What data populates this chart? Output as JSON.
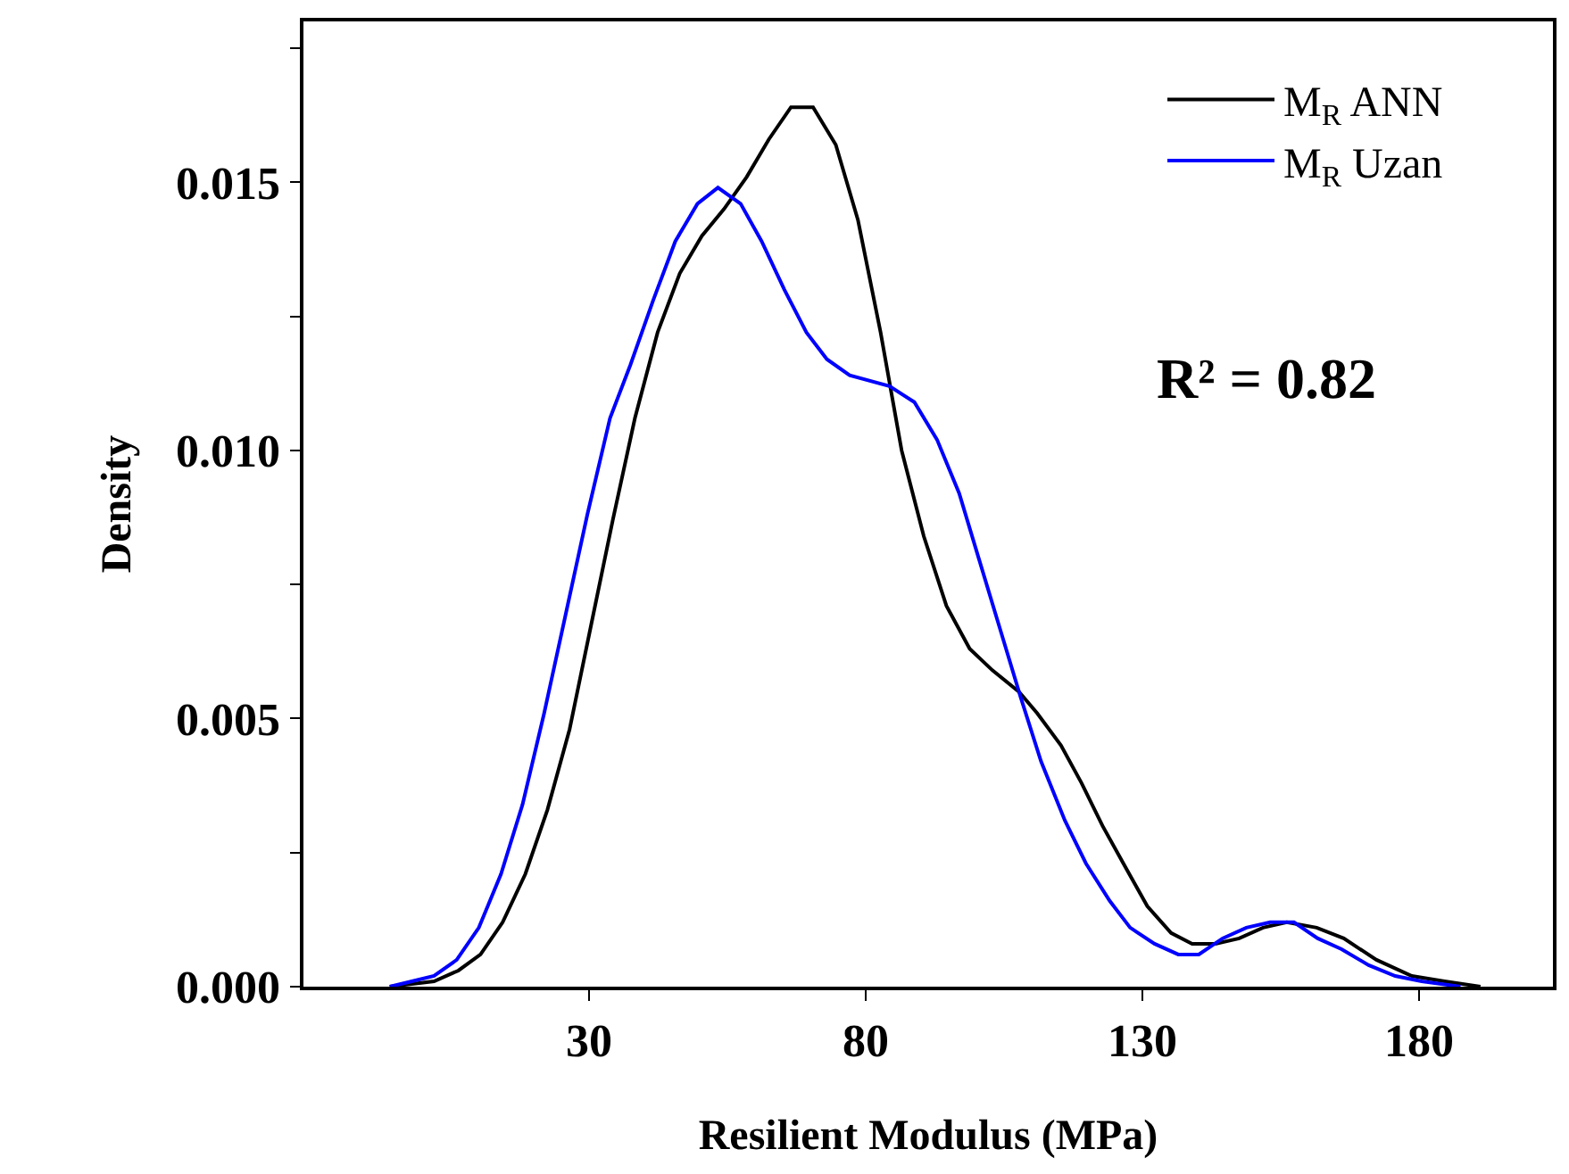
{
  "chart_data": {
    "type": "line",
    "xlabel": "Resilient Modulus (MPa)",
    "ylabel": "Density",
    "xlim": [
      -21.6,
      204.2
    ],
    "xticks": [
      30,
      80,
      130,
      180
    ],
    "ylim": [
      0,
      0.018
    ],
    "yticks": [
      {
        "value": 0,
        "label": "0.000"
      },
      {
        "value": 0.0025,
        "label": null
      },
      {
        "value": 0.005,
        "label": "0.005"
      },
      {
        "value": 0.0075,
        "label": null
      },
      {
        "value": 0.01,
        "label": "0.010"
      },
      {
        "value": 0.0125,
        "label": null
      },
      {
        "value": 0.015,
        "label": "0.015"
      },
      {
        "value": 0.0175,
        "label": null
      }
    ],
    "legend": "top right",
    "marker": "none",
    "line_style": "solid",
    "annotations": [
      "R² = 0.82"
    ],
    "series": [
      {
        "name": "M$_{R}$ ANN",
        "color": "#000000",
        "x": [
          -6.0,
          2.0,
          6.4,
          10.4,
          14.4,
          18.5,
          22.5,
          26.5,
          30.3,
          34.3,
          38.3,
          42.4,
          46.4,
          50.4,
          54.4,
          58.5,
          62.5,
          66.5,
          70.5,
          74.6,
          78.6,
          82.7,
          86.5,
          90.5,
          94.6,
          98.8,
          102.9,
          107.7,
          111.0,
          115.3,
          119.0,
          122.8,
          127.1,
          130.9,
          135.2,
          139.0,
          143.2,
          147.5,
          151.8,
          156.1,
          161.5,
          166.4,
          172.3,
          178.7,
          184.6,
          191.1
        ],
        "values": [
          0,
          0.0001,
          0.0003,
          0.0006,
          0.0012,
          0.0021,
          0.0033,
          0.0048,
          0.0067,
          0.0087,
          0.0106,
          0.0122,
          0.0133,
          0.014,
          0.0145,
          0.0151,
          0.0158,
          0.0164,
          0.0164,
          0.0157,
          0.0143,
          0.0122,
          0.01,
          0.0084,
          0.0071,
          0.0063,
          0.0059,
          0.0055,
          0.0051,
          0.0045,
          0.0038,
          0.003,
          0.0022,
          0.0015,
          0.001,
          0.0008,
          0.0008,
          0.0009,
          0.0011,
          0.0012,
          0.0011,
          0.0009,
          0.0005,
          0.0002,
          0.0001,
          0
        ]
      },
      {
        "name": "M$_{R}$ Uzan",
        "color": "#0000ff",
        "x": [
          -6.0,
          -2.0,
          2.0,
          6.1,
          10.1,
          14.1,
          18.0,
          21.9,
          25.7,
          29.7,
          33.8,
          37.5,
          41.6,
          45.6,
          49.6,
          53.3,
          57.4,
          61.2,
          65.3,
          69.3,
          73.0,
          77.1,
          84.3,
          88.8,
          92.9,
          96.9,
          100.4,
          104.2,
          108.0,
          111.7,
          116.0,
          119.8,
          124.1,
          127.8,
          132.2,
          136.5,
          140.2,
          144.5,
          148.8,
          153.1,
          157.4,
          161.7,
          166.0,
          170.9,
          175.7,
          180.5,
          187.5
        ],
        "values": [
          0,
          0.0001,
          0.0002,
          0.0005,
          0.0011,
          0.0021,
          0.0034,
          0.0051,
          0.0069,
          0.0088,
          0.0106,
          0.0116,
          0.0128,
          0.0139,
          0.0146,
          0.0149,
          0.0146,
          0.0139,
          0.013,
          0.0122,
          0.0117,
          0.0114,
          0.0112,
          0.0109,
          0.0102,
          0.0092,
          0.008,
          0.0067,
          0.0054,
          0.0042,
          0.0031,
          0.0023,
          0.0016,
          0.0011,
          0.0008,
          0.0006,
          0.0006,
          0.0009,
          0.0011,
          0.0012,
          0.0012,
          0.0009,
          0.0007,
          0.0004,
          0.0002,
          0.0001,
          0
        ]
      }
    ]
  }
}
